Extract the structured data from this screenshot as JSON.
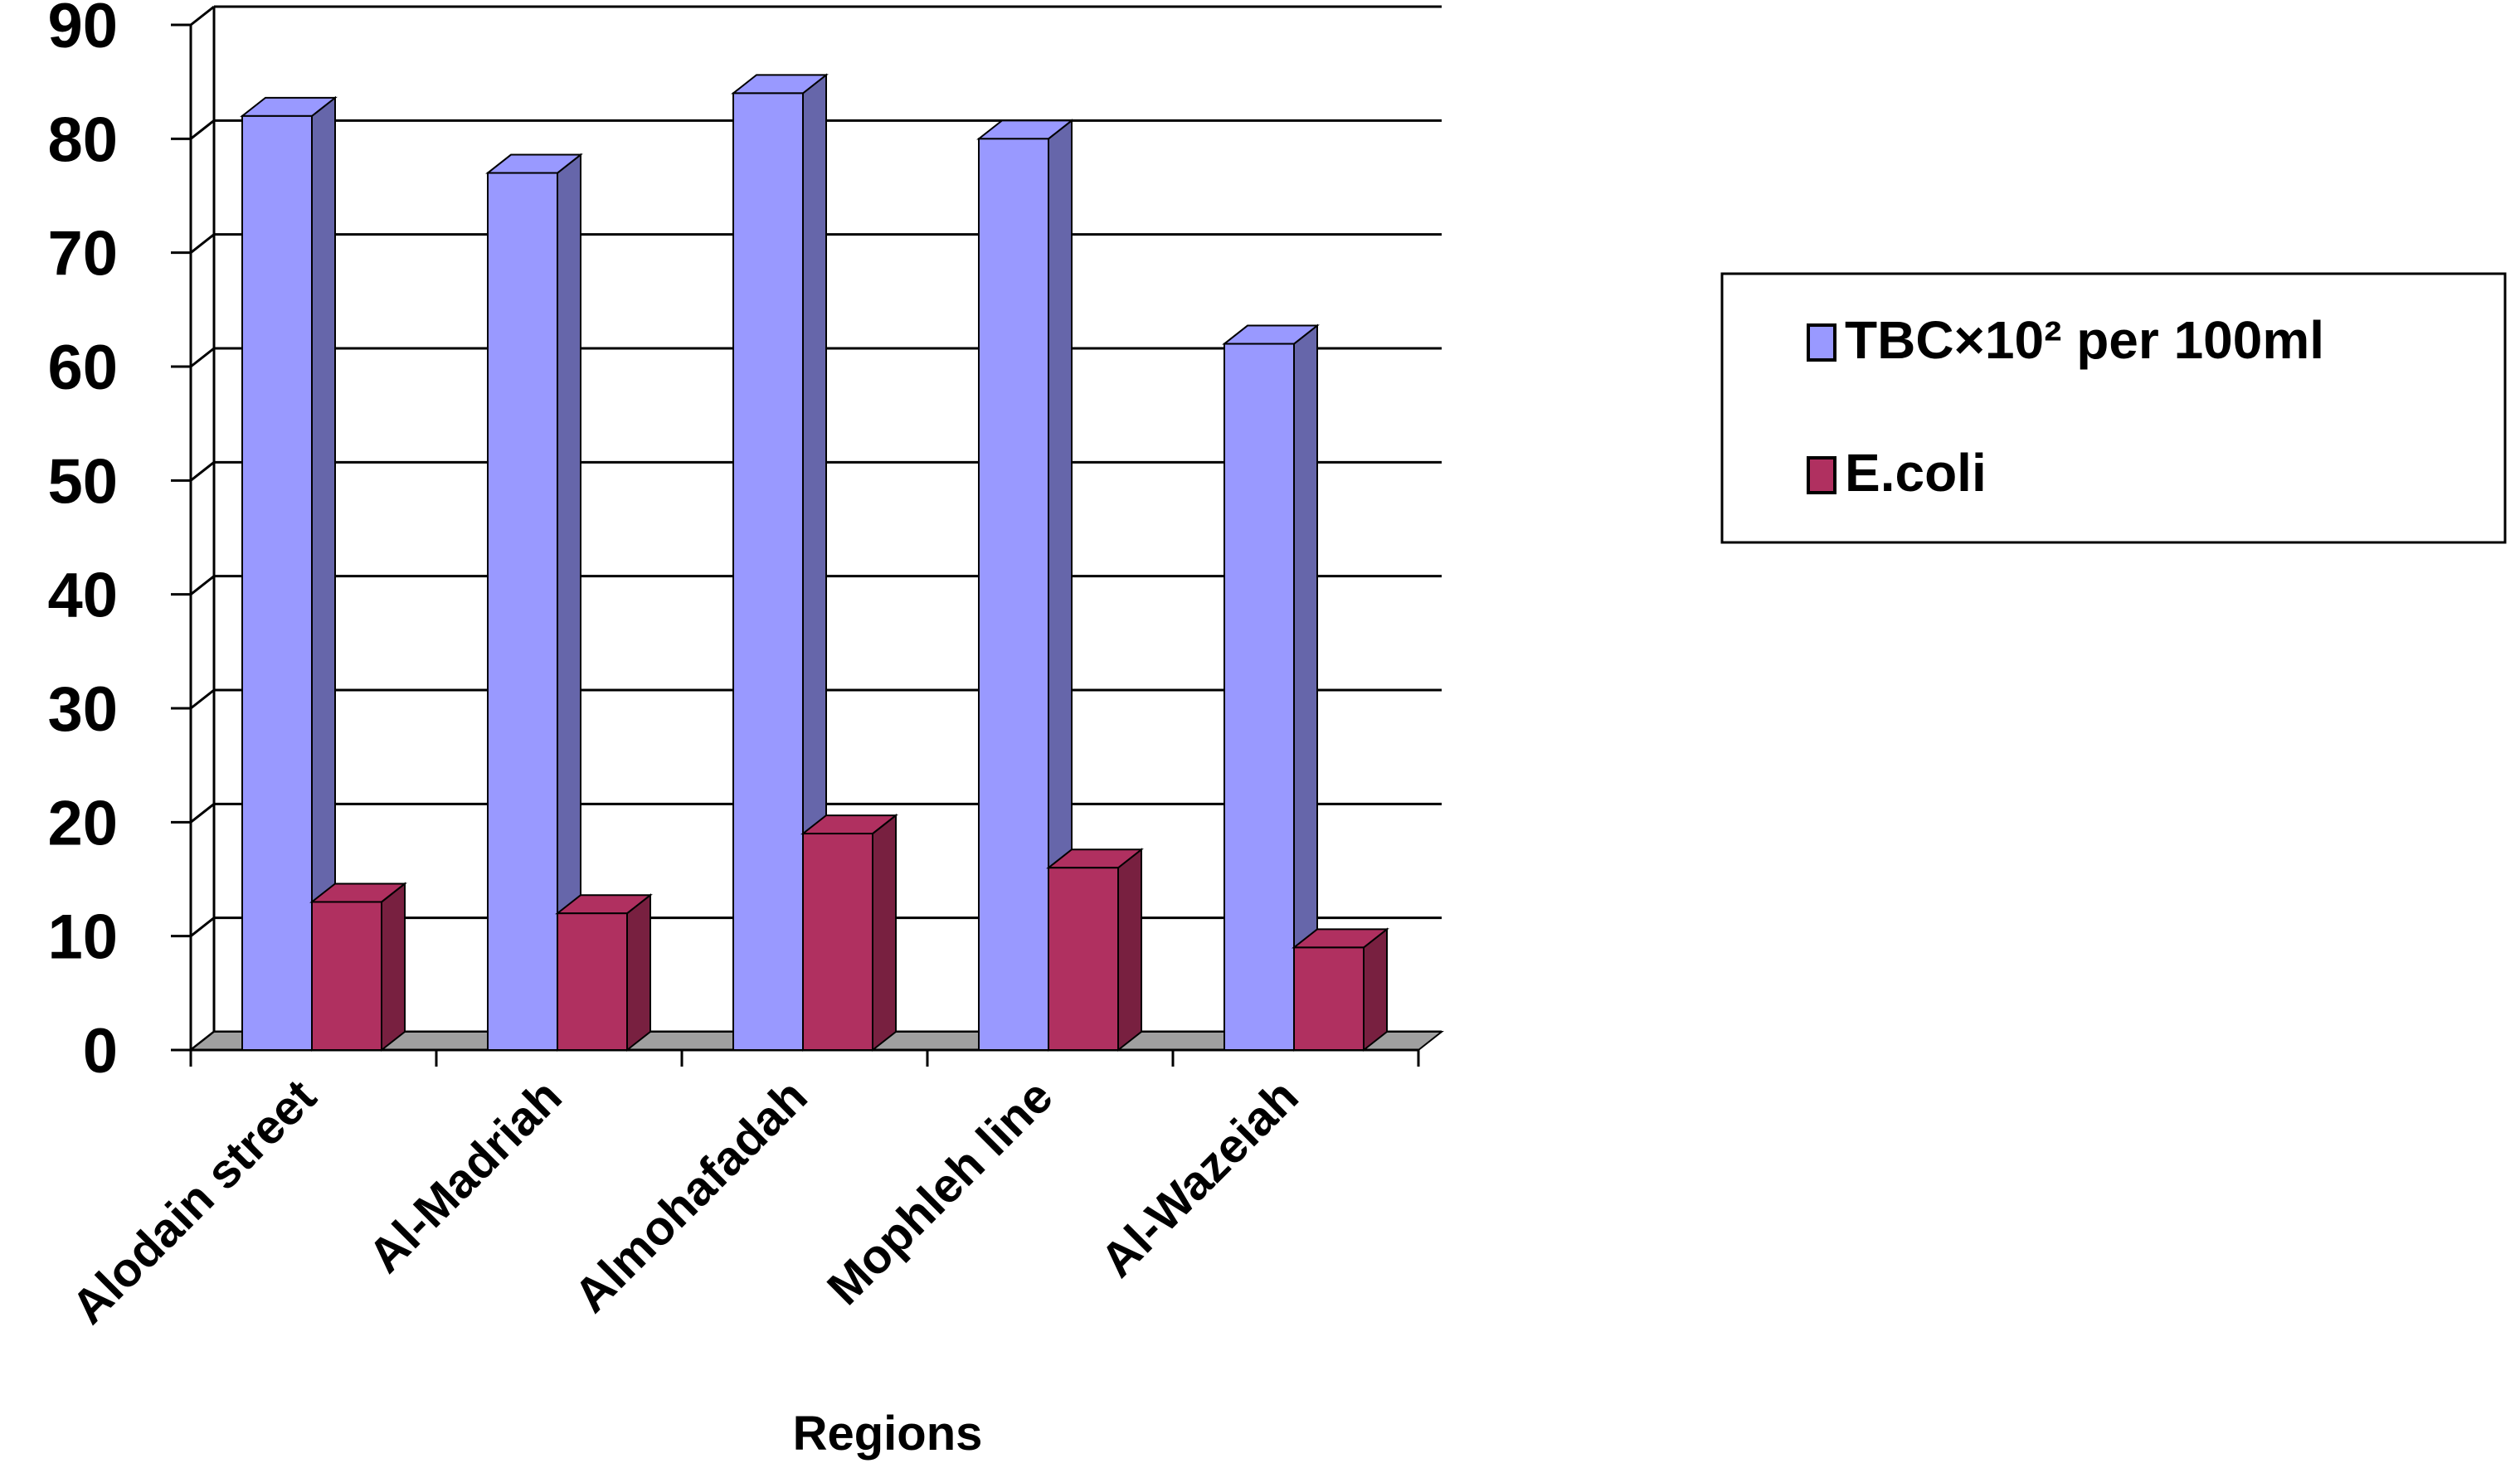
{
  "chart_data": {
    "type": "bar",
    "style": "3d-clustered-column",
    "categories": [
      "Alodain  street",
      "Al-Madriah",
      "Almohafadah",
      "Mophleh line",
      "Al-Wazeiah"
    ],
    "series": [
      {
        "name": "TBC×10² per 100ml",
        "values": [
          82,
          77,
          84,
          80,
          62
        ],
        "color": "#9999ff",
        "side_color": "#6666aa"
      },
      {
        "name": "E.coli",
        "values": [
          13,
          12,
          19,
          16,
          9
        ],
        "color": "#b03060",
        "side_color": "#782040"
      }
    ],
    "xlabel": "Regions",
    "ylabel": "",
    "ylim": [
      0,
      90
    ],
    "yticks": [
      0,
      10,
      20,
      30,
      40,
      50,
      60,
      70,
      80,
      90
    ],
    "grid": true,
    "legend_position": "right"
  }
}
